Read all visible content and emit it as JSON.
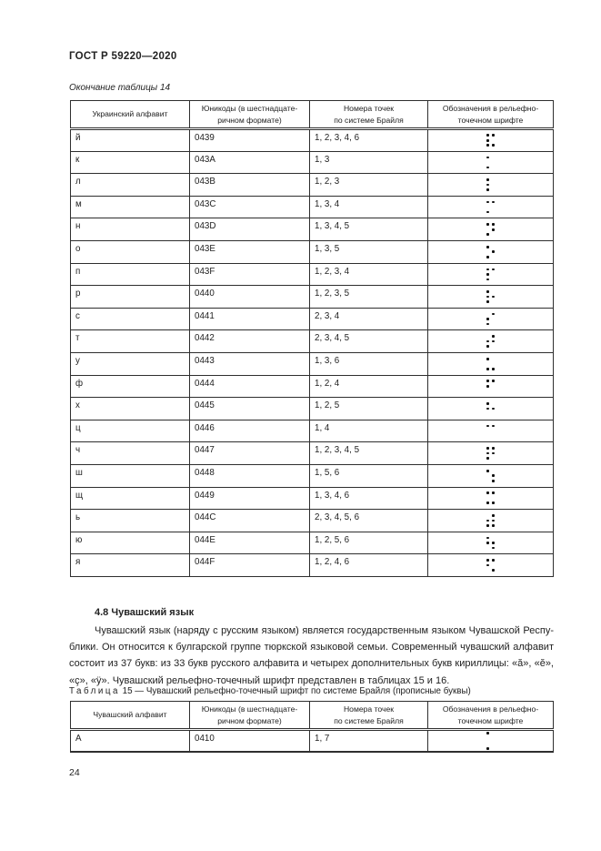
{
  "page": {
    "header_title": "ГОСТ Р 59220—2020",
    "page_number": "24"
  },
  "table14": {
    "continuation_caption": "Окончание таблицы 14",
    "columns": [
      "Украинский алфавит",
      "Юникоды (в шестнадцате-\nричном формате)",
      "Номера точек\nпо системе Брайля",
      "Обозначения в рельефно-\nточечном шрифте"
    ],
    "rows": [
      {
        "letter": "й",
        "unicode": "0439",
        "points_label": "1, 2, 3, 4, 6",
        "points": [
          1,
          2,
          3,
          4,
          6
        ]
      },
      {
        "letter": "к",
        "unicode": "043A",
        "points_label": "1, 3",
        "points": [
          1,
          3
        ]
      },
      {
        "letter": "л",
        "unicode": "043B",
        "points_label": "1, 2, 3",
        "points": [
          1,
          2,
          3
        ]
      },
      {
        "letter": "м",
        "unicode": "043C",
        "points_label": "1, 3, 4",
        "points": [
          1,
          3,
          4
        ]
      },
      {
        "letter": "н",
        "unicode": "043D",
        "points_label": "1, 3, 4, 5",
        "points": [
          1,
          3,
          4,
          5
        ]
      },
      {
        "letter": "о",
        "unicode": "043E",
        "points_label": "1, 3, 5",
        "points": [
          1,
          3,
          5
        ]
      },
      {
        "letter": "п",
        "unicode": "043F",
        "points_label": "1, 2, 3, 4",
        "points": [
          1,
          2,
          3,
          4
        ]
      },
      {
        "letter": "р",
        "unicode": "0440",
        "points_label": "1, 2, 3, 5",
        "points": [
          1,
          2,
          3,
          5
        ]
      },
      {
        "letter": "с",
        "unicode": "0441",
        "points_label": "2, 3, 4",
        "points": [
          2,
          3,
          4
        ]
      },
      {
        "letter": "т",
        "unicode": "0442",
        "points_label": "2, 3, 4, 5",
        "points": [
          2,
          3,
          4,
          5
        ]
      },
      {
        "letter": "у",
        "unicode": "0443",
        "points_label": "1, 3, 6",
        "points": [
          1,
          3,
          6
        ]
      },
      {
        "letter": "ф",
        "unicode": "0444",
        "points_label": "1, 2, 4",
        "points": [
          1,
          2,
          4
        ]
      },
      {
        "letter": "х",
        "unicode": "0445",
        "points_label": "1, 2, 5",
        "points": [
          1,
          2,
          5
        ]
      },
      {
        "letter": "ц",
        "unicode": "0446",
        "points_label": "1, 4",
        "points": [
          1,
          4
        ]
      },
      {
        "letter": "ч",
        "unicode": "0447",
        "points_label": "1, 2, 3, 4, 5",
        "points": [
          1,
          2,
          3,
          4,
          5
        ]
      },
      {
        "letter": "ш",
        "unicode": "0448",
        "points_label": "1, 5, 6",
        "points": [
          1,
          5,
          6
        ]
      },
      {
        "letter": "щ",
        "unicode": "0449",
        "points_label": "1, 3, 4, 6",
        "points": [
          1,
          3,
          4,
          6
        ]
      },
      {
        "letter": "ь",
        "unicode": "044C",
        "points_label": "2, 3, 4, 5, 6",
        "points": [
          2,
          3,
          4,
          5,
          6
        ]
      },
      {
        "letter": "ю",
        "unicode": "044E",
        "points_label": "1, 2, 5, 6",
        "points": [
          1,
          2,
          5,
          6
        ]
      },
      {
        "letter": "я",
        "unicode": "044F",
        "points_label": "1, 2, 4, 6",
        "points": [
          1,
          2,
          4,
          6
        ]
      }
    ]
  },
  "section": {
    "heading": "4.8 Чувашский язык",
    "paragraph_lines": [
      "Чувашский язык (наряду с русским языком) является государственным языком Чувашской Респу-",
      "блики. Он относится к булгарской группе тюркской языковой семьи. Современный чувашский алфавит",
      "состоит из 37 букв: из 33 букв русского алфавита и четырех дополнительных букв кириллицы: «ă», «ĕ»,",
      "«ç», «ÿ». Чувашский рельефно-точечный шрифт представлен в таблицах 15 и 16."
    ]
  },
  "table15": {
    "caption_word": "Таблица",
    "caption_number": "15",
    "caption_rest": "— Чувашский рельефно-точечный шрифт по системе Брайля (прописные буквы)",
    "columns": [
      "Чувашский алфавит",
      "Юникоды (в шестнадцате-\nричном формате)",
      "Номера точек\nпо системе Брайля",
      "Обозначения в рельефно-\nточечном шрифте"
    ],
    "rows": [
      {
        "letter": "А",
        "unicode": "0410",
        "points_label": "1, 7",
        "points": [
          1,
          7
        ]
      }
    ]
  }
}
